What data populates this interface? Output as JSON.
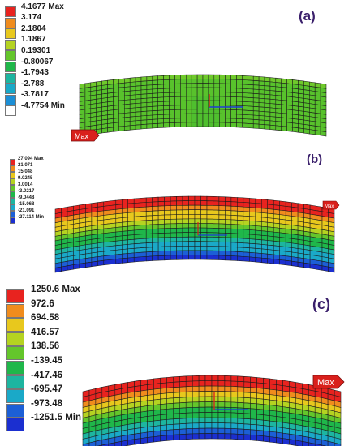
{
  "panels": [
    {
      "label": "(a)",
      "legend_values": [
        "4.1677 Max",
        "3.174",
        "2.1804",
        "1.1867",
        "0.19301",
        "-0.80067",
        "-1.7943",
        "-2.788",
        "-3.7817",
        "-4.7754 Min"
      ],
      "legend_colors": [
        "#e8231f",
        "#f08c1d",
        "#e8c81d",
        "#b5d321",
        "#64c62b",
        "#1fb74a",
        "#1db5a0",
        "#1aa9c8",
        "#1c8fd6",
        "#ffffff"
      ],
      "max_tag": "Max"
    },
    {
      "label": "(b)",
      "legend_values": [
        "27.094 Max",
        "21.071",
        "15.048",
        "9.0245",
        "3.0014",
        "-3.0217",
        "-9.0448",
        "-15.068",
        "-21.091",
        "-27.114 Min"
      ],
      "legend_colors": [
        "#e8231f",
        "#f08c1d",
        "#e8c81d",
        "#b5d321",
        "#64c62b",
        "#1fb74a",
        "#1db5a0",
        "#1aa9c8",
        "#1c5fd6",
        "#1b2fd0"
      ],
      "max_tag": "Max"
    },
    {
      "label": "(c)",
      "legend_values": [
        "1250.6 Max",
        "972.6",
        "694.58",
        "416.57",
        "138.56",
        "-139.45",
        "-417.46",
        "-695.47",
        "-973.48",
        "-1251.5 Min"
      ],
      "legend_colors": [
        "#e8231f",
        "#f08c1d",
        "#e8c81d",
        "#b5d321",
        "#64c62b",
        "#1fb74a",
        "#1db5a0",
        "#1aa9c8",
        "#1c5fd6",
        "#1b2fd0"
      ],
      "max_tag": "Max"
    }
  ]
}
